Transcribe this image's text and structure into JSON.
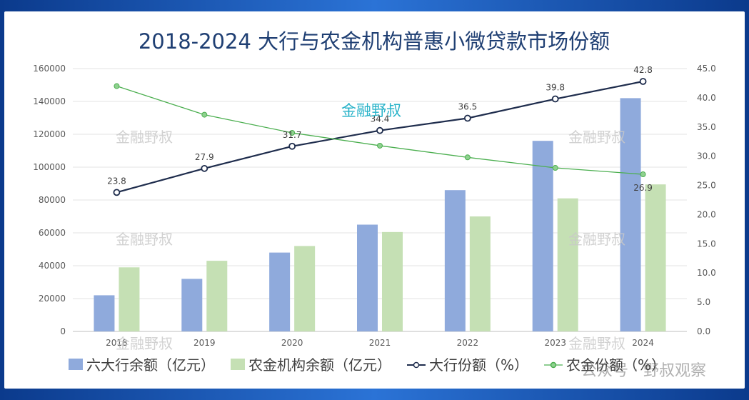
{
  "chart_data": {
    "type": "bar",
    "title": "2018-2024 大行与农金机构普惠小微贷款市场份额",
    "categories": [
      "2018",
      "2019",
      "2020",
      "2021",
      "2022",
      "2023",
      "2024"
    ],
    "series": [
      {
        "name": "六大行余额（亿元）",
        "type": "bar",
        "axis": "left",
        "color": "#8faadc",
        "values": [
          22000,
          32000,
          48000,
          65000,
          86000,
          116000,
          142000
        ]
      },
      {
        "name": "农金机构余额（亿元）",
        "type": "bar",
        "axis": "left",
        "color": "#c5e0b4",
        "values": [
          39000,
          43000,
          52000,
          60500,
          70000,
          81000,
          89500
        ]
      },
      {
        "name": "大行份额（%）",
        "type": "line",
        "axis": "right",
        "color": "#1f2d4d",
        "values": [
          23.8,
          27.9,
          31.7,
          34.4,
          36.5,
          39.8,
          42.8
        ],
        "labels": [
          "23.8",
          "27.9",
          "31.7",
          "34.4",
          "36.5",
          "39.8",
          "42.8"
        ]
      },
      {
        "name": "农金份额（%）",
        "type": "line",
        "axis": "right",
        "color": "#4caf50",
        "values": [
          42.0,
          37.1,
          34.0,
          31.8,
          29.8,
          28.0,
          26.9
        ],
        "labels": [
          "",
          "",
          "",
          "",
          "",
          "",
          "26.9"
        ]
      }
    ],
    "y_left": {
      "min": 0,
      "max": 160000,
      "ticks": [
        "0",
        "20000",
        "40000",
        "60000",
        "80000",
        "100000",
        "120000",
        "140000",
        "160000"
      ]
    },
    "y_right": {
      "min": 0,
      "max": 45,
      "ticks": [
        "0.0",
        "5.0",
        "10.0",
        "15.0",
        "20.0",
        "25.0",
        "30.0",
        "35.0",
        "40.0",
        "45.0"
      ]
    },
    "grid": true,
    "legend": "bottom"
  },
  "watermarks": {
    "grey": "金融野叔",
    "blue": "金融野叔",
    "bottom": "公众号 · 野叔观察"
  },
  "colors": {
    "frame": "#1f5fbf",
    "title": "#1f3f73"
  }
}
